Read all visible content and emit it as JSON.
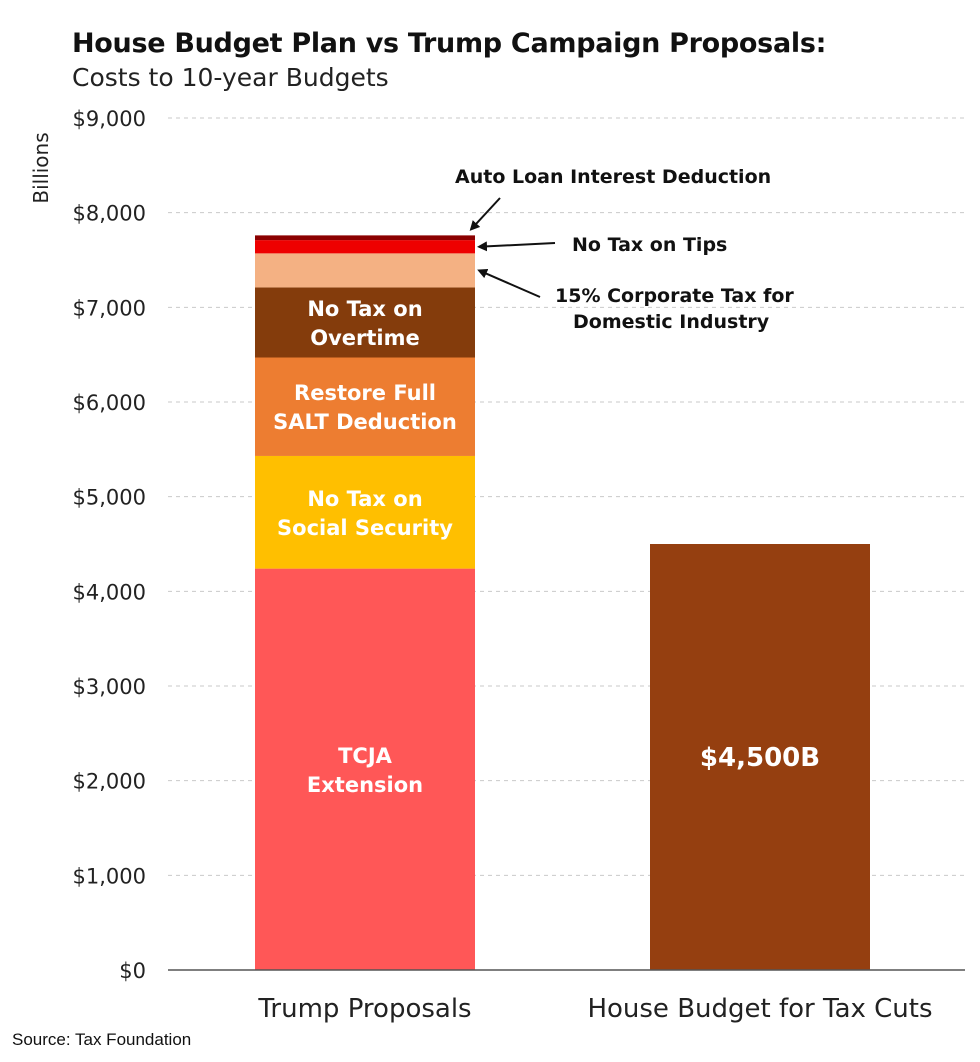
{
  "title": "House Budget Plan vs Trump Campaign Proposals:",
  "subtitle": "Costs to 10-year Budgets",
  "source": "Source: Tax Foundation",
  "chart_data": {
    "type": "bar",
    "stacked": true,
    "ylabel": "Billions",
    "ylim": [
      0,
      9000
    ],
    "y_ticks": [
      "$0",
      "$1,000",
      "$2,000",
      "$3,000",
      "$4,000",
      "$5,000",
      "$6,000",
      "$7,000",
      "$8,000",
      "$9,000"
    ],
    "y_tick_values": [
      0,
      1000,
      2000,
      3000,
      4000,
      5000,
      6000,
      7000,
      8000,
      9000
    ],
    "grid": true,
    "categories": [
      "Trump Proposals",
      "House Budget for Tax Cuts"
    ],
    "series": [
      {
        "name": "TCJA Extension",
        "label": [
          "TCJA",
          "Extension"
        ],
        "color": "#ff5757",
        "values": [
          4240,
          0
        ]
      },
      {
        "name": "No Tax on Social Security",
        "label": [
          "No Tax on",
          "Social Security"
        ],
        "color": "#ffbf00",
        "values": [
          1190,
          0
        ]
      },
      {
        "name": "Restore Full SALT Deduction",
        "label": [
          "Restore Full",
          "SALT Deduction"
        ],
        "color": "#ed7d31",
        "values": [
          1040,
          0
        ]
      },
      {
        "name": "No Tax on Overtime",
        "label": [
          "No Tax on",
          "Overtime"
        ],
        "color": "#843c0c",
        "values": [
          740,
          0
        ]
      },
      {
        "name": "15% Corporate Tax for Domestic Industry",
        "label": [
          "15% Corporate Tax for",
          "Domestic Industry"
        ],
        "color": "#f4b183",
        "values": [
          360,
          0
        ],
        "annotation": true
      },
      {
        "name": "No Tax on Tips",
        "label": [
          "No Tax on Tips"
        ],
        "color": "#ee0000",
        "values": [
          140,
          0
        ],
        "annotation": true
      },
      {
        "name": "Auto Loan Interest Deduction",
        "label": [
          "Auto Loan Interest Deduction"
        ],
        "color": "#8b0000",
        "values": [
          50,
          0
        ],
        "annotation": true
      },
      {
        "name": "House Budget for Tax Cuts",
        "label": [
          "$4,500B"
        ],
        "color": "#953f10",
        "values": [
          0,
          4500
        ]
      }
    ]
  }
}
